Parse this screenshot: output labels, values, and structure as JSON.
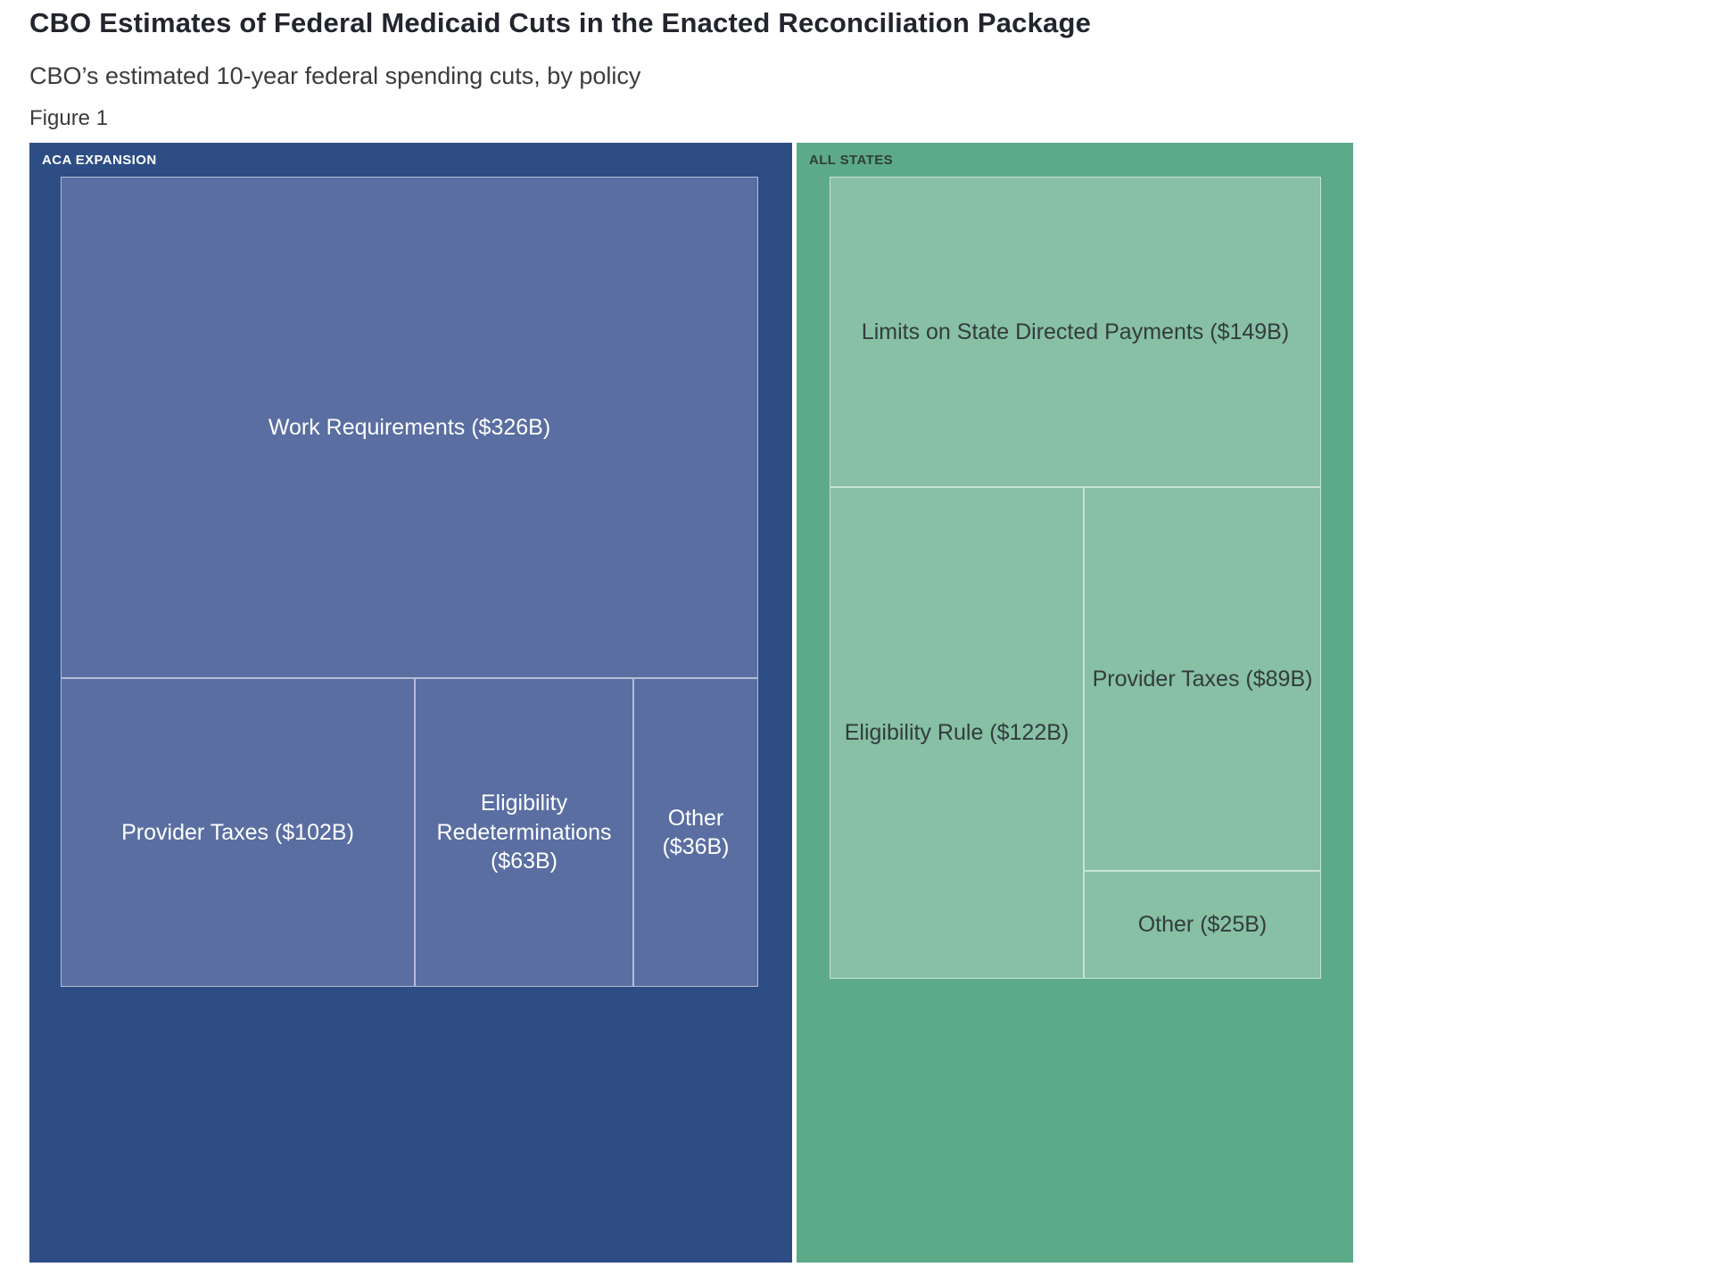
{
  "page": {
    "title": "CBO Estimates of Federal Medicaid Cuts in the Enacted Reconciliation Package",
    "subtitle": "CBO’s estimated 10-year federal spending cuts, by policy",
    "figure_label": "Figure 1"
  },
  "chart_data": {
    "type": "treemap",
    "title": "CBO Estimates of Federal Medicaid Cuts in the Enacted Reconciliation Package",
    "subtitle": "CBO’s estimated 10-year federal spending cuts, by policy",
    "units": "USD billions, 10-year federal spending cuts",
    "legend": "none",
    "layout": "two group panels side by side, tile area proportional to value",
    "groups": [
      {
        "name": "ACA EXPANSION",
        "panel_color": "#2e4d85",
        "tile_color": "#5a6ea2",
        "text_color": "#ffffff",
        "total_value": 527,
        "items": [
          {
            "name": "Work Requirements",
            "value": 326,
            "label": "Work Requirements ($326B)"
          },
          {
            "name": "Provider Taxes",
            "value": 102,
            "label": "Provider Taxes ($102B)"
          },
          {
            "name": "Eligibility Redeterminations",
            "value": 63,
            "label": "Eligibility Redeterminations ($63B)"
          },
          {
            "name": "Other",
            "value": 36,
            "label": "Other ($36B)"
          }
        ]
      },
      {
        "name": "ALL STATES",
        "panel_color": "#5caa88",
        "tile_color": "#87c0a4",
        "text_color": "#333b3d",
        "total_value": 385,
        "items": [
          {
            "name": "Limits on State Directed Payments",
            "value": 149,
            "label": "Limits on State Directed Payments ($149B)"
          },
          {
            "name": "Eligibility Rule",
            "value": 122,
            "label": "Eligibility Rule ($122B)"
          },
          {
            "name": "Provider Taxes",
            "value": 89,
            "label": "Provider Taxes ($89B)"
          },
          {
            "name": "Other",
            "value": 25,
            "label": "Other ($25B)"
          }
        ]
      }
    ]
  }
}
